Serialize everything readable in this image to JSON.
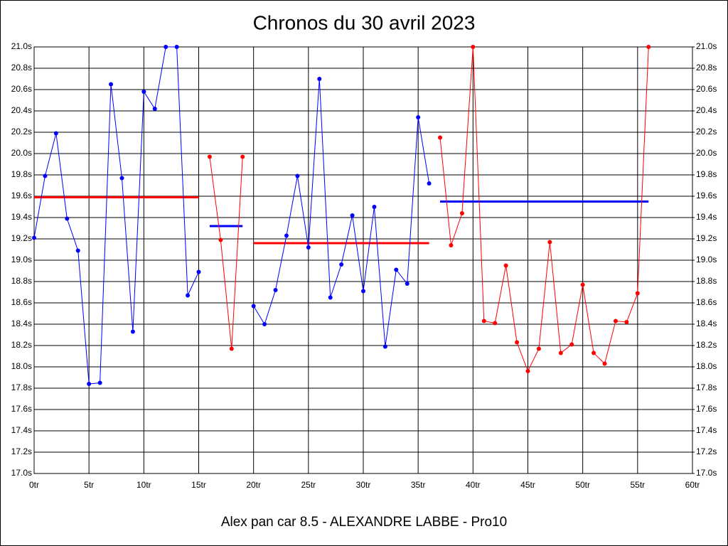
{
  "chart_data": {
    "type": "line",
    "title": "Chronos du 30 avril 2023",
    "xlabel": "Alex pan car 8.5 - ALEXANDRE LABBE - Pro10",
    "x": [
      0,
      1,
      2,
      3,
      4,
      5,
      6,
      7,
      8,
      9,
      10,
      11,
      12,
      13,
      14,
      15,
      16,
      17,
      18,
      19,
      20,
      21,
      22,
      23,
      24,
      25,
      26,
      27,
      28,
      29,
      30,
      31,
      32,
      33,
      34,
      35,
      36,
      37,
      38,
      39,
      40,
      41,
      42,
      43,
      44,
      45,
      46,
      47,
      48,
      49,
      50,
      51,
      52,
      53,
      54,
      55,
      56
    ],
    "series": [
      {
        "color": "#0000ff",
        "values": [
          19.21,
          19.79,
          20.19,
          19.39,
          19.09,
          17.84,
          17.85,
          20.65,
          19.77,
          18.33,
          20.58,
          20.42,
          21.0,
          21.0,
          18.67,
          18.89,
          null,
          null,
          null,
          null,
          18.57,
          18.4,
          18.72,
          19.23,
          19.79,
          19.12,
          20.7,
          18.65,
          18.96,
          19.42,
          18.71,
          19.5,
          18.19,
          18.91,
          18.78,
          20.34,
          19.72,
          null,
          null,
          null,
          null,
          null,
          null,
          null,
          null,
          null,
          null,
          null,
          null,
          null,
          null,
          null,
          null,
          null,
          null,
          null,
          null
        ]
      },
      {
        "color": "#ff0000",
        "values": [
          null,
          null,
          null,
          null,
          null,
          null,
          null,
          null,
          null,
          null,
          null,
          null,
          null,
          null,
          null,
          null,
          19.97,
          19.19,
          18.17,
          19.97,
          null,
          null,
          null,
          null,
          null,
          null,
          null,
          null,
          null,
          null,
          null,
          null,
          null,
          null,
          null,
          null,
          null,
          20.15,
          19.14,
          19.44,
          21.0,
          18.43,
          18.41,
          18.95,
          18.23,
          17.96,
          18.17,
          19.17,
          18.13,
          18.21,
          18.77,
          18.13,
          18.03,
          18.43,
          18.42,
          18.69,
          21.0
        ]
      }
    ],
    "averages": [
      {
        "color": "#ff0000",
        "value": 19.59,
        "from": 0,
        "to": 15
      },
      {
        "color": "#0000ff",
        "value": 19.32,
        "from": 16,
        "to": 19
      },
      {
        "color": "#ff0000",
        "value": 19.16,
        "from": 20,
        "to": 36
      },
      {
        "color": "#0000ff",
        "value": 19.55,
        "from": 37,
        "to": 56
      }
    ],
    "xlim": [
      0,
      60
    ],
    "xticks": [
      {
        "value": 0,
        "label": "0tr"
      },
      {
        "value": 5,
        "label": "5tr"
      },
      {
        "value": 10,
        "label": "10tr"
      },
      {
        "value": 15,
        "label": "15tr"
      },
      {
        "value": 20,
        "label": "20tr"
      },
      {
        "value": 25,
        "label": "25tr"
      },
      {
        "value": 30,
        "label": "30tr"
      },
      {
        "value": 35,
        "label": "35tr"
      },
      {
        "value": 40,
        "label": "40tr"
      },
      {
        "value": 45,
        "label": "45tr"
      },
      {
        "value": 50,
        "label": "50tr"
      },
      {
        "value": 55,
        "label": "55tr"
      },
      {
        "value": 60,
        "label": "60tr"
      }
    ],
    "ylim": [
      17,
      21
    ],
    "yticks": [
      {
        "value": 17,
        "label": "17.0s"
      },
      {
        "value": 17.2,
        "label": "17.2s"
      },
      {
        "value": 17.4,
        "label": "17.4s"
      },
      {
        "value": 17.6,
        "label": "17.6s"
      },
      {
        "value": 17.8,
        "label": "17.8s"
      },
      {
        "value": 18,
        "label": "18.0s"
      },
      {
        "value": 18.2,
        "label": "18.2s"
      },
      {
        "value": 18.4,
        "label": "18.4s"
      },
      {
        "value": 18.6,
        "label": "18.6s"
      },
      {
        "value": 18.8,
        "label": "18.8s"
      },
      {
        "value": 19,
        "label": "19.0s"
      },
      {
        "value": 19.2,
        "label": "19.2s"
      },
      {
        "value": 19.4,
        "label": "19.4s"
      },
      {
        "value": 19.6,
        "label": "19.6s"
      },
      {
        "value": 19.8,
        "label": "19.8s"
      },
      {
        "value": 20,
        "label": "20.0s"
      },
      {
        "value": 20.2,
        "label": "20.2s"
      },
      {
        "value": 20.4,
        "label": "20.4s"
      },
      {
        "value": 20.6,
        "label": "20.6s"
      },
      {
        "value": 20.8,
        "label": "20.8s"
      },
      {
        "value": 21,
        "label": "21.0s"
      }
    ],
    "y2lim": [
      17,
      21
    ],
    "y2ticks": [
      {
        "value": 17,
        "label": "17.0s"
      },
      {
        "value": 17.2,
        "label": "17.2s"
      },
      {
        "value": 17.4,
        "label": "17.4s"
      },
      {
        "value": 17.6,
        "label": "17.6s"
      },
      {
        "value": 17.8,
        "label": "17.8s"
      },
      {
        "value": 18,
        "label": "18.0s"
      },
      {
        "value": 18.2,
        "label": "18.2s"
      },
      {
        "value": 18.4,
        "label": "18.4s"
      },
      {
        "value": 18.6,
        "label": "18.6s"
      },
      {
        "value": 18.8,
        "label": "18.8s"
      },
      {
        "value": 19,
        "label": "19.0s"
      },
      {
        "value": 19.2,
        "label": "19.2s"
      },
      {
        "value": 19.4,
        "label": "19.4s"
      },
      {
        "value": 19.6,
        "label": "19.6s"
      },
      {
        "value": 19.8,
        "label": "19.8s"
      },
      {
        "value": 20,
        "label": "20.0s"
      },
      {
        "value": 20.2,
        "label": "20.2s"
      },
      {
        "value": 20.4,
        "label": "20.4s"
      },
      {
        "value": 20.6,
        "label": "20.6s"
      },
      {
        "value": 20.8,
        "label": "20.8s"
      },
      {
        "value": 21,
        "label": "21.0s"
      }
    ],
    "grid": true
  }
}
